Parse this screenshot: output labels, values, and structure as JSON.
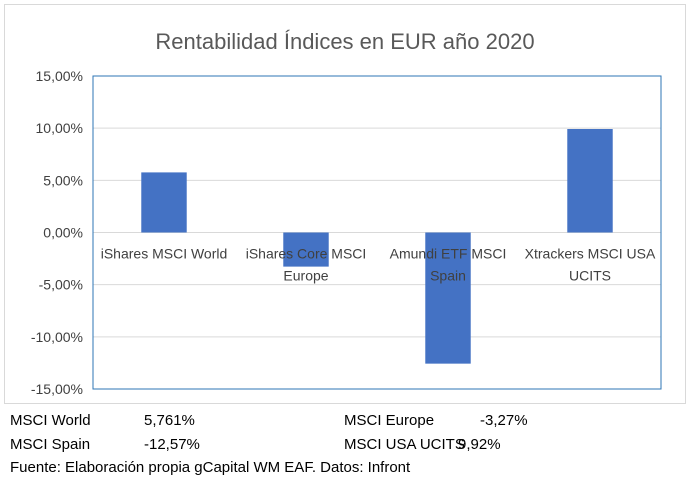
{
  "chart_data": {
    "type": "bar",
    "title": "Rentabilidad Índices en EUR año 2020",
    "categories": [
      [
        "iShares MSCI World"
      ],
      [
        "iShares Core MSCI",
        "Europe"
      ],
      [
        "Amundi ETF MSCI",
        "Spain"
      ],
      [
        "Xtrackers MSCI USA",
        "UCITS"
      ]
    ],
    "values": [
      5.761,
      -3.27,
      -12.57,
      9.92
    ],
    "ylim": [
      -15,
      15
    ],
    "yticks": [
      15,
      10,
      5,
      0,
      -5,
      -10,
      -15
    ],
    "ytick_labels": [
      "15,00%",
      "10,00%",
      "5,00%",
      "0,00%",
      "-5,00%",
      "-10,00%",
      "-15,00%"
    ],
    "grid": true,
    "bar_color": "#4472c4",
    "plot_border_color": "#2e75b6"
  },
  "footer": {
    "rows": [
      [
        {
          "label": "MSCI World",
          "value": "5,761%"
        },
        {
          "label": "MSCI Europe",
          "value": "-3,27%"
        }
      ],
      [
        {
          "label": "MSCI Spain",
          "value": "-12,57%"
        },
        {
          "label": "MSCI USA UCITS",
          "value": "9,92%"
        }
      ]
    ],
    "source": "Fuente: Elaboración propia gCapital WM EAF. Datos: Infront"
  }
}
